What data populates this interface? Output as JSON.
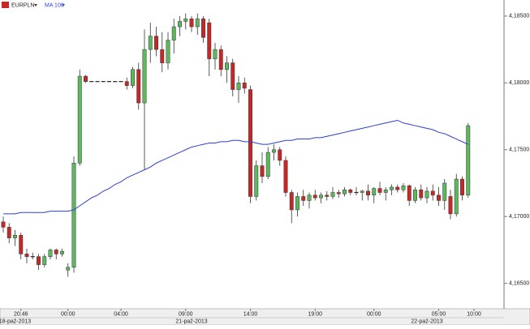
{
  "chart_data": {
    "type": "candlestick",
    "instrument": "EURPLN",
    "up_color": "#5cb85c",
    "down_color": "#c62828",
    "flat_color": "#222222",
    "ylim": [
      4.1631,
      4.1859
    ],
    "yticks": [
      {
        "value": 4.185,
        "label": "4,18500"
      },
      {
        "value": 4.18,
        "label": "4,18000"
      },
      {
        "value": 4.175,
        "label": "4,17500"
      },
      {
        "value": 4.17,
        "label": "4,17000"
      },
      {
        "value": 4.165,
        "label": "4,16500"
      }
    ],
    "xticks": [
      {
        "value": 3,
        "label": "20:46"
      },
      {
        "value": 11,
        "label": "00:00"
      },
      {
        "value": 20,
        "label": "04:00"
      },
      {
        "value": 31,
        "label": "09:00"
      },
      {
        "value": 42,
        "label": "14:00"
      },
      {
        "value": 53,
        "label": "19:00"
      },
      {
        "value": 63,
        "label": "00:00"
      },
      {
        "value": 74,
        "label": "05:00"
      },
      {
        "value": 80,
        "label": "10:00"
      }
    ],
    "date_ticks": [
      {
        "value": 2,
        "label": "18-paź-2013"
      },
      {
        "value": 32,
        "label": "21-paź-2013"
      },
      {
        "value": 72,
        "label": "22-paź-2013"
      }
    ],
    "series": [
      {
        "name": "EURPLN",
        "open": [
          4.1696,
          4.1692,
          4.1684,
          4.1686,
          4.1672,
          4.167,
          4.167,
          4.1664,
          4.167,
          4.1675,
          4.1672,
          4.166,
          4.1662,
          4.174,
          4.1805,
          4.1801,
          4.1801,
          4.1801,
          4.1801,
          4.1801,
          4.1801,
          4.1801,
          4.1798,
          4.181,
          4.1785,
          4.1825,
          4.1835,
          4.1825,
          4.1815,
          4.1832,
          4.1842,
          4.1846,
          4.1848,
          4.1842,
          4.1848,
          4.1845,
          4.1818,
          4.1825,
          4.181,
          4.1815,
          4.1795,
          4.18,
          4.1795,
          4.1715,
          4.1738,
          4.173,
          4.1748,
          4.175,
          4.1742,
          4.1718,
          4.1705,
          4.1715,
          4.1712,
          4.1716,
          4.1714,
          4.1716,
          4.1715,
          4.1718,
          4.1717,
          4.172,
          4.1718,
          4.1718,
          4.1719,
          4.1716,
          4.1721,
          4.1718,
          4.172,
          4.1722,
          4.172,
          4.1723,
          4.1712,
          4.172,
          4.1714,
          4.1719,
          4.1716,
          4.1712,
          4.1715,
          4.1702,
          4.1728,
          4.1716
        ],
        "high": [
          4.17,
          4.1695,
          4.169,
          4.1688,
          4.1676,
          4.1673,
          4.1672,
          4.1672,
          4.1676,
          4.1676,
          4.1676,
          4.1665,
          4.1745,
          4.181,
          4.1806,
          4.1801,
          4.1801,
          4.1801,
          4.1801,
          4.1801,
          4.1801,
          4.1804,
          4.1812,
          4.1815,
          4.184,
          4.1845,
          4.1842,
          4.1838,
          4.1838,
          4.1848,
          4.185,
          4.1852,
          4.185,
          4.1852,
          4.185,
          4.1848,
          4.183,
          4.1828,
          4.182,
          4.1818,
          4.1805,
          4.1804,
          4.1798,
          4.1742,
          4.1748,
          4.1752,
          4.1754,
          4.1752,
          4.1745,
          4.172,
          4.1718,
          4.172,
          4.1718,
          4.172,
          4.1718,
          4.1719,
          4.1722,
          4.172,
          4.1722,
          4.1721,
          4.1722,
          4.172,
          4.1724,
          4.1722,
          4.1726,
          4.1722,
          4.1724,
          4.1724,
          4.1725,
          4.1724,
          4.1722,
          4.1724,
          4.1722,
          4.1724,
          4.1722,
          4.1728,
          4.172,
          4.1732,
          4.173,
          4.177
        ],
        "low": [
          4.1688,
          4.168,
          4.1678,
          4.1668,
          4.1665,
          4.1668,
          4.166,
          4.1662,
          4.1668,
          4.1668,
          4.167,
          4.1655,
          4.1658,
          4.1738,
          4.18,
          4.1801,
          4.1801,
          4.1801,
          4.1801,
          4.1801,
          4.1801,
          4.1795,
          4.1796,
          4.178,
          4.1735,
          4.1815,
          4.182,
          4.1808,
          4.181,
          4.1822,
          4.1835,
          4.184,
          4.1838,
          4.1836,
          4.183,
          4.1805,
          4.181,
          4.1805,
          4.18,
          4.179,
          4.1785,
          4.1792,
          4.171,
          4.1712,
          4.1725,
          4.1728,
          4.1742,
          4.1738,
          4.1715,
          4.1695,
          4.17,
          4.1708,
          4.1706,
          4.1712,
          4.171,
          4.1712,
          4.1713,
          4.1714,
          4.1715,
          4.1716,
          4.1716,
          4.1712,
          4.1712,
          4.171,
          4.1716,
          4.1712,
          4.1716,
          4.1718,
          4.1718,
          4.1708,
          4.171,
          4.1712,
          4.171,
          4.1712,
          4.1708,
          4.1705,
          4.1698,
          4.17,
          4.1712,
          4.1714
        ],
        "close": [
          4.1692,
          4.1684,
          4.1686,
          4.1672,
          4.167,
          4.167,
          4.1664,
          4.167,
          4.1675,
          4.1672,
          4.1674,
          4.1662,
          4.174,
          4.1805,
          4.1801,
          4.1801,
          4.1801,
          4.1801,
          4.1801,
          4.1801,
          4.1801,
          4.1798,
          4.181,
          4.1785,
          4.1825,
          4.1835,
          4.1825,
          4.1815,
          4.1832,
          4.1842,
          4.1846,
          4.1848,
          4.1842,
          4.1848,
          4.1834,
          4.1818,
          4.1825,
          4.181,
          4.1815,
          4.1795,
          4.18,
          4.1796,
          4.1715,
          4.1738,
          4.173,
          4.1748,
          4.175,
          4.1742,
          4.1718,
          4.1705,
          4.1715,
          4.1712,
          4.1716,
          4.1714,
          4.1716,
          4.1715,
          4.1718,
          4.1717,
          4.172,
          4.1718,
          4.1718,
          4.1719,
          4.1716,
          4.1721,
          4.1718,
          4.172,
          4.1722,
          4.172,
          4.1723,
          4.1712,
          4.172,
          4.1714,
          4.1719,
          4.1716,
          4.1712,
          4.1725,
          4.1702,
          4.1728,
          4.1716,
          4.1768
        ]
      },
      {
        "name": "MA 100",
        "color": "#2b3fd6",
        "values": [
          4.1702,
          4.1702,
          4.1702,
          4.1703,
          4.1703,
          4.1703,
          4.1703,
          4.1703,
          4.1704,
          4.1704,
          4.1704,
          4.1704,
          4.1705,
          4.1708,
          4.1711,
          4.1714,
          4.1716,
          4.1719,
          4.1721,
          4.1724,
          4.1726,
          4.1729,
          4.1731,
          4.1733,
          4.1735,
          4.1737,
          4.174,
          4.1742,
          4.1744,
          4.1746,
          4.1748,
          4.175,
          4.1752,
          4.1753,
          4.1754,
          4.1755,
          4.1755,
          4.1756,
          4.1756,
          4.1757,
          4.1757,
          4.1756,
          4.1756,
          4.1755,
          4.1754,
          4.1754,
          4.1755,
          4.1756,
          4.1757,
          4.1757,
          4.1758,
          4.1758,
          4.1758,
          4.1759,
          4.1759,
          4.176,
          4.1761,
          4.1762,
          4.1763,
          4.1764,
          4.1765,
          4.1766,
          4.1767,
          4.1768,
          4.1769,
          4.177,
          4.1771,
          4.1772,
          4.177,
          4.1769,
          4.1768,
          4.1767,
          4.1766,
          4.1765,
          4.1763,
          4.1762,
          4.176,
          4.1758,
          4.1756,
          4.1754
        ]
      }
    ]
  }
}
